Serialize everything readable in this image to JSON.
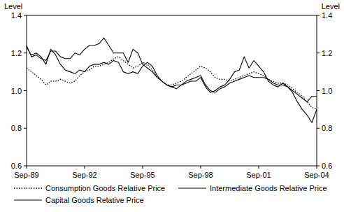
{
  "chart_data": {
    "type": "line",
    "ylabel": "Level",
    "y2label": "Level",
    "categories": [
      "Sep-89",
      null,
      null,
      null,
      null,
      null,
      null,
      null,
      null,
      null,
      null,
      null,
      "Sep-92",
      null,
      null,
      null,
      null,
      null,
      null,
      null,
      null,
      null,
      null,
      null,
      "Sep-95",
      null,
      null,
      null,
      null,
      null,
      null,
      null,
      null,
      null,
      null,
      null,
      "Sep-98",
      null,
      null,
      null,
      null,
      null,
      null,
      null,
      null,
      null,
      null,
      null,
      "Sep-01",
      null,
      null,
      null,
      null,
      null,
      null,
      null,
      null,
      null,
      null,
      null,
      "Sep-04"
    ],
    "series": [
      {
        "name": "Consumption Goods Relative Price",
        "color": "#000000",
        "line_style": "dotted",
        "values": [
          1.12,
          1.1,
          1.08,
          1.06,
          1.03,
          1.05,
          1.05,
          1.06,
          1.05,
          1.04,
          1.05,
          1.08,
          1.1,
          1.11,
          1.13,
          1.13,
          1.14,
          1.15,
          1.17,
          1.18,
          1.16,
          1.14,
          1.12,
          1.13,
          1.15,
          1.14,
          1.11,
          1.07,
          1.05,
          1.03,
          1.03,
          1.04,
          1.05,
          1.07,
          1.09,
          1.11,
          1.13,
          1.12,
          1.1,
          1.07,
          1.06,
          1.06,
          1.05,
          1.06,
          1.07,
          1.08,
          1.09,
          1.1,
          1.09,
          1.08,
          1.06,
          1.05,
          1.04,
          1.04,
          1.03,
          1.01,
          0.99,
          0.97,
          0.94,
          0.91,
          0.9
        ]
      },
      {
        "name": "Intermediate Goods Relative Price",
        "color": "#000000",
        "line_style": "solid",
        "values": [
          1.23,
          1.19,
          1.2,
          1.18,
          1.14,
          1.22,
          1.19,
          1.14,
          1.11,
          1.1,
          1.09,
          1.11,
          1.1,
          1.13,
          1.14,
          1.14,
          1.15,
          1.14,
          1.16,
          1.15,
          1.1,
          1.09,
          1.1,
          1.09,
          1.13,
          1.15,
          1.13,
          1.08,
          1.05,
          1.03,
          1.02,
          1.01,
          1.03,
          1.05,
          1.06,
          1.07,
          1.08,
          1.03,
          1.0,
          0.99,
          1.01,
          1.02,
          1.04,
          1.05,
          1.06,
          1.07,
          1.08,
          1.07,
          1.07,
          1.07,
          1.06,
          1.04,
          1.03,
          1.03,
          1.02,
          1.0,
          0.98,
          0.96,
          0.94,
          0.97,
          0.97
        ]
      },
      {
        "name": "Capital Goods Relative Price",
        "color": "#000000",
        "line_style": "solid",
        "values": [
          1.24,
          1.18,
          1.19,
          1.17,
          1.16,
          1.21,
          1.21,
          1.18,
          1.17,
          1.17,
          1.2,
          1.19,
          1.22,
          1.24,
          1.24,
          1.25,
          1.28,
          1.24,
          1.2,
          1.2,
          1.2,
          1.15,
          1.22,
          1.2,
          1.14,
          1.12,
          1.1,
          1.07,
          1.05,
          1.03,
          1.02,
          1.03,
          1.03,
          1.04,
          1.05,
          1.05,
          1.07,
          1.02,
          0.99,
          1.0,
          1.02,
          1.03,
          1.06,
          1.1,
          1.11,
          1.18,
          1.12,
          1.16,
          1.13,
          1.1,
          1.05,
          1.03,
          1.02,
          1.04,
          1.02,
          0.99,
          0.94,
          0.9,
          0.87,
          0.83,
          0.9
        ]
      }
    ],
    "ylim": [
      0.6,
      1.4
    ],
    "yticks": [
      0.6,
      0.8,
      {
        "value": 1.0,
        "label": "1.0"
      },
      1.2,
      1.4
    ],
    "y2lim": [
      0.6,
      1.4
    ],
    "y2ticks": [
      0.6,
      0.8,
      {
        "value": 1.0,
        "label": "1.0"
      },
      1.2,
      1.4
    ],
    "grid": false,
    "legend": "bottom"
  }
}
